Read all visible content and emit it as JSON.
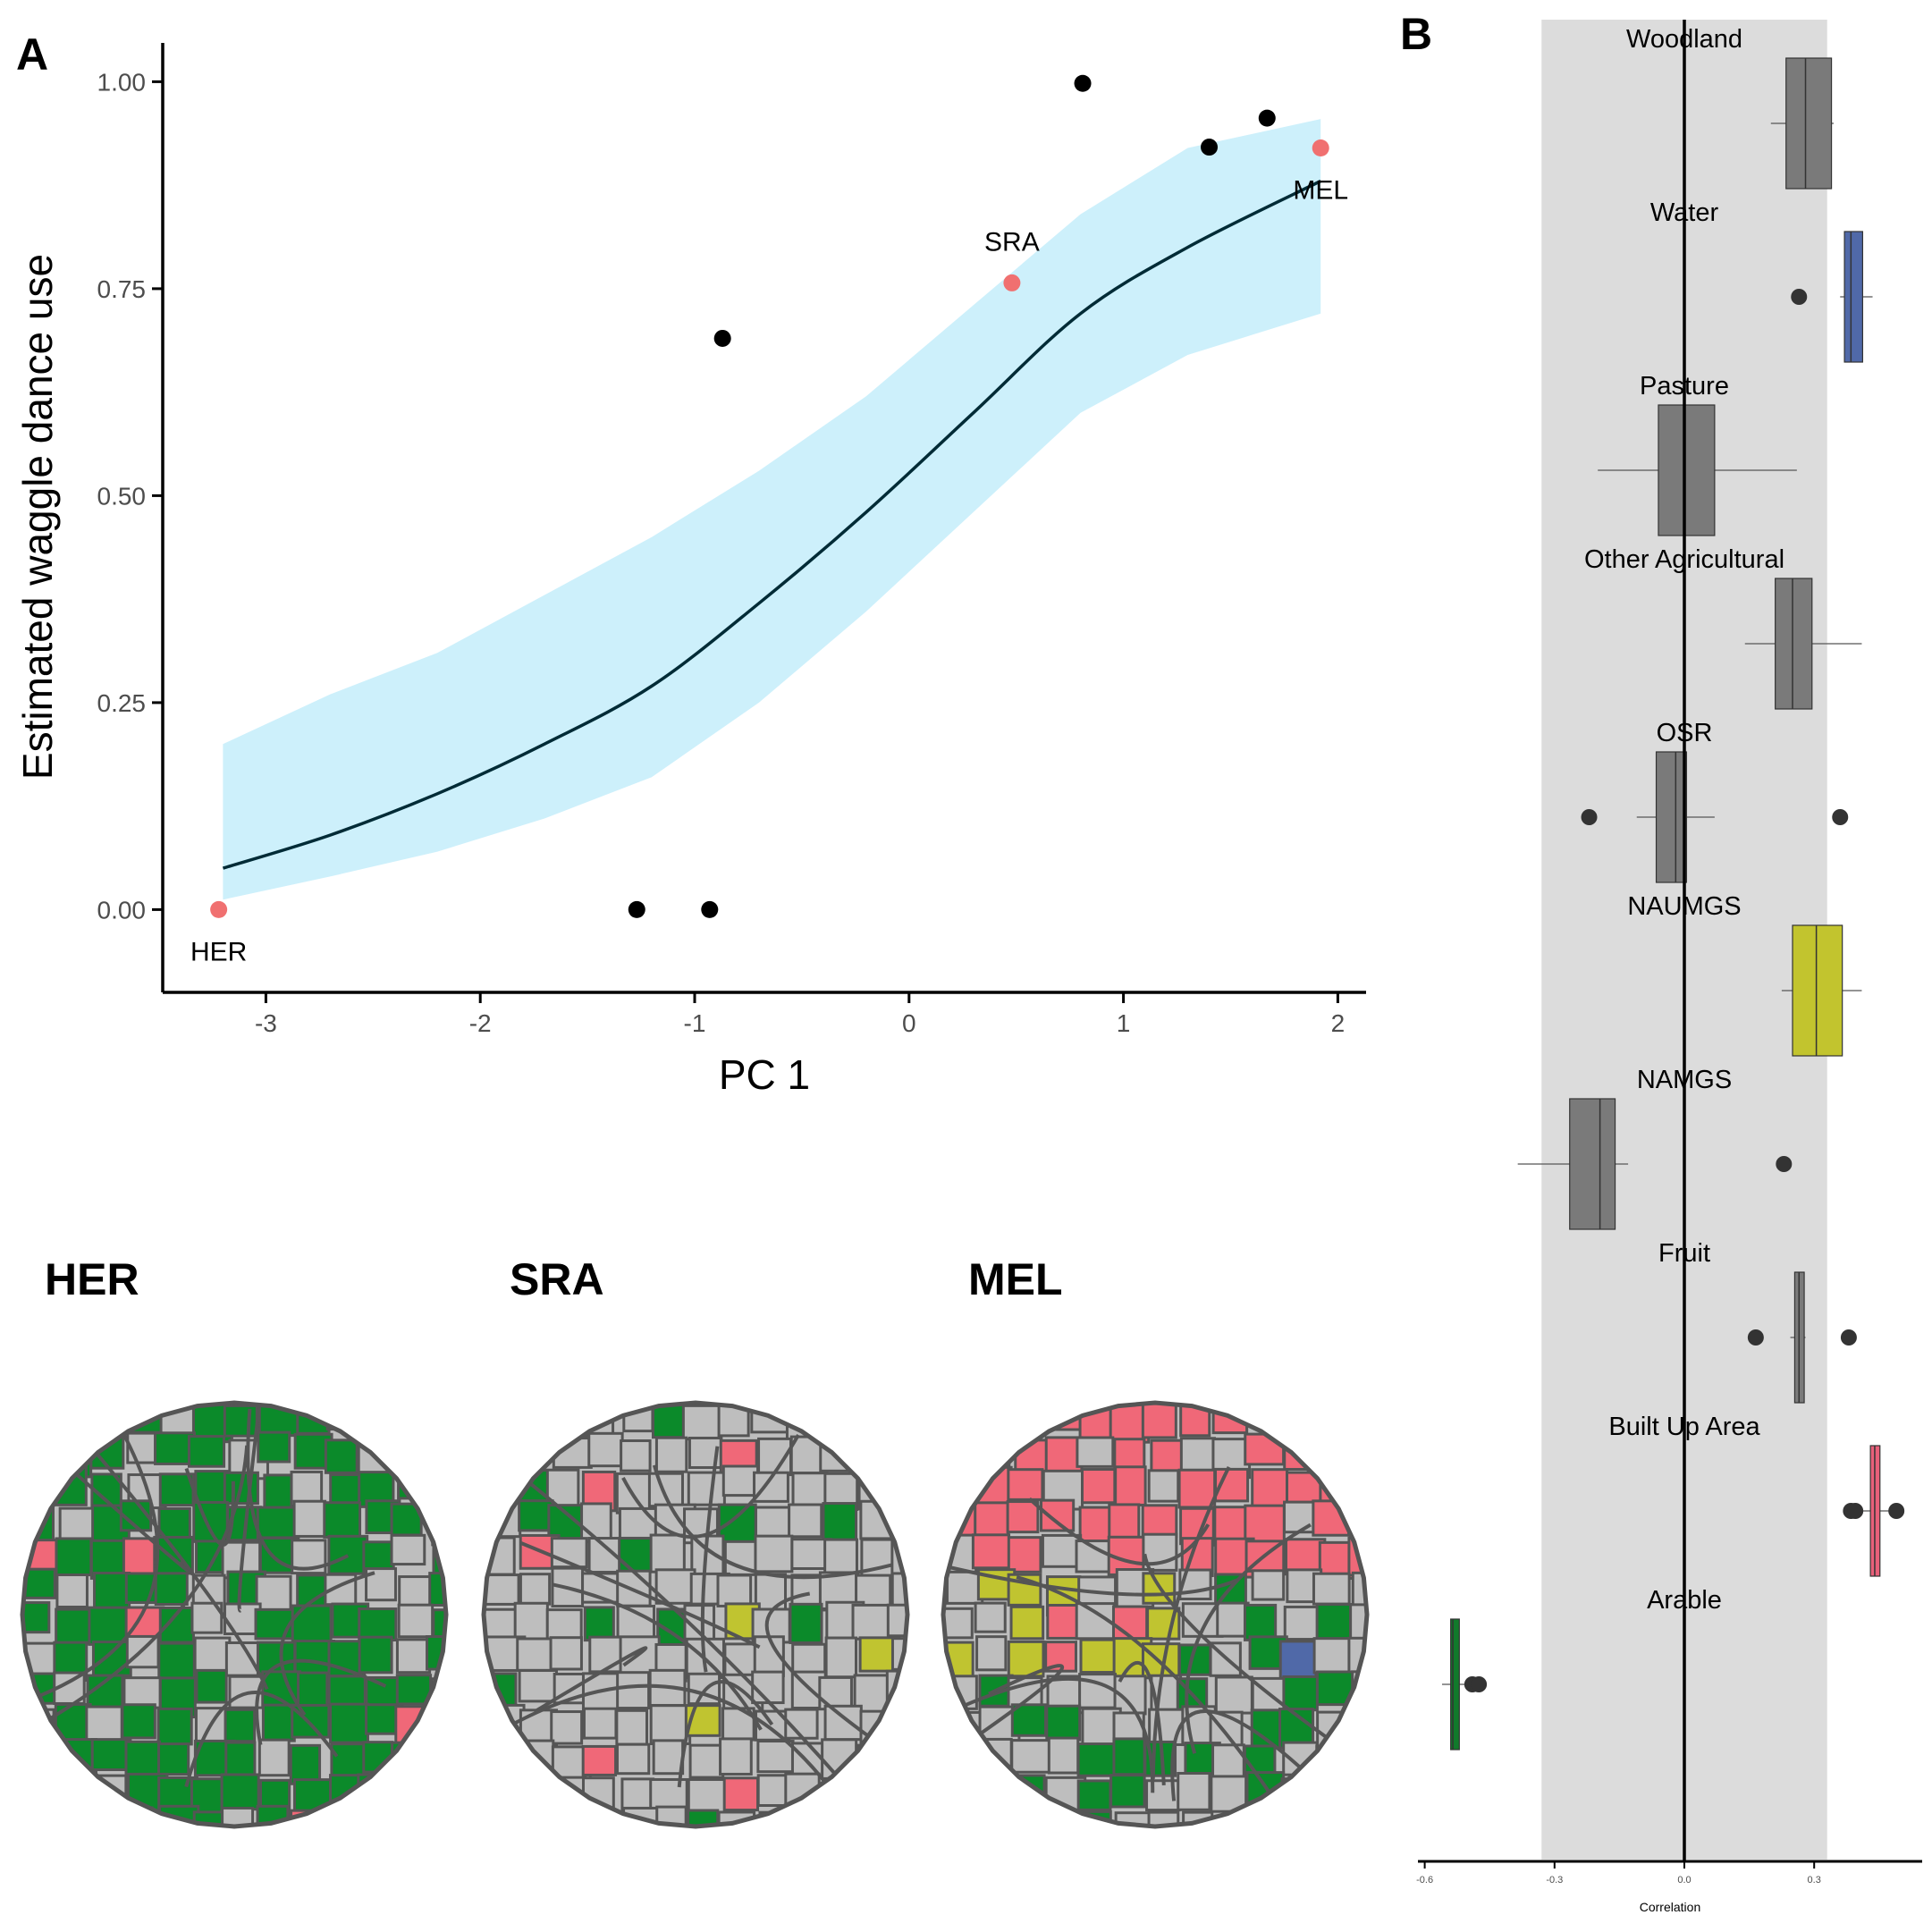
{
  "panels": {
    "a_label": "A",
    "b_label": "B"
  },
  "chart_data": [
    {
      "type": "scatter",
      "panel": "A",
      "xlabel": "PC 1",
      "ylabel": "Estimated waggle dance use",
      "xlim": [
        -3.5,
        2.2
      ],
      "ylim": [
        -0.1,
        1.05
      ],
      "xticks": [
        {
          "value": -3,
          "label": "-3"
        },
        {
          "value": -2,
          "label": "-2"
        },
        {
          "value": -1,
          "label": "-1"
        },
        {
          "value": 0,
          "label": "0"
        },
        {
          "value": 1,
          "label": "1"
        },
        {
          "value": 2,
          "label": "2"
        }
      ],
      "yticks": [
        {
          "value": 0,
          "label": "0.00"
        },
        {
          "value": 0.25,
          "label": "0.25"
        },
        {
          "value": 0.5,
          "label": "0.50"
        },
        {
          "value": 0.75,
          "label": "0.75"
        },
        {
          "value": 1,
          "label": "1.00"
        }
      ],
      "fit_curve": {
        "color": "#002b36",
        "ribbon_color": "#cdf0fb",
        "x": [
          -3.2,
          -2.7,
          -2.2,
          -1.7,
          -1.2,
          -0.7,
          -0.2,
          0.3,
          0.8,
          1.3,
          1.92
        ],
        "y": [
          0.05,
          0.09,
          0.14,
          0.2,
          0.27,
          0.37,
          0.48,
          0.6,
          0.72,
          0.8,
          0.88
        ],
        "lower": [
          0.012,
          0.04,
          0.07,
          0.11,
          0.16,
          0.25,
          0.36,
          0.48,
          0.6,
          0.67,
          0.72
        ],
        "upper": [
          0.2,
          0.26,
          0.31,
          0.38,
          0.45,
          0.53,
          0.62,
          0.73,
          0.84,
          0.92,
          0.955
        ]
      },
      "points": [
        {
          "x": -3.22,
          "y": 0.0,
          "label": "HER",
          "highlight": true
        },
        {
          "x": -1.27,
          "y": 0.0,
          "label": "",
          "highlight": false
        },
        {
          "x": -0.93,
          "y": 0.0,
          "label": "",
          "highlight": false
        },
        {
          "x": -0.87,
          "y": 0.69,
          "label": "",
          "highlight": false
        },
        {
          "x": 0.48,
          "y": 0.757,
          "label": "SRA",
          "highlight": true
        },
        {
          "x": 0.81,
          "y": 0.998,
          "label": "",
          "highlight": false
        },
        {
          "x": 1.4,
          "y": 0.921,
          "label": "",
          "highlight": false
        },
        {
          "x": 1.67,
          "y": 0.956,
          "label": "",
          "highlight": false
        },
        {
          "x": 1.92,
          "y": 0.92,
          "label": "MEL",
          "highlight": true
        }
      ],
      "point_colors": {
        "highlight": "#f07070",
        "normal": "#000000"
      }
    },
    {
      "type": "boxplot",
      "panel": "B",
      "xlabel": "Correlation",
      "xlim": [
        -0.62,
        0.54
      ],
      "xticks": [
        {
          "value": -0.6,
          "label": "-0.6"
        },
        {
          "value": -0.3,
          "label": "-0.3"
        },
        {
          "value": 0.0,
          "label": "0.0"
        },
        {
          "value": 0.3,
          "label": "0.3"
        }
      ],
      "shaded_band": [
        -0.33,
        0.33
      ],
      "reference_line": 0.0,
      "categories": [
        {
          "name": "Woodland",
          "color": "#7a7a7a",
          "q1": 0.235,
          "median": 0.28,
          "q3": 0.34,
          "whisker_low": 0.2,
          "whisker_high": 0.345,
          "outliers": []
        },
        {
          "name": "Water",
          "color": "#5069a8",
          "q1": 0.37,
          "median": 0.385,
          "q3": 0.412,
          "whisker_low": 0.36,
          "whisker_high": 0.435,
          "outliers": [
            0.265
          ]
        },
        {
          "name": "Pasture",
          "color": "#7a7a7a",
          "q1": -0.06,
          "median": 0.0,
          "q3": 0.07,
          "whisker_low": -0.2,
          "whisker_high": 0.26,
          "outliers": []
        },
        {
          "name": "Other Agricultural",
          "color": "#7a7a7a",
          "q1": 0.21,
          "median": 0.25,
          "q3": 0.295,
          "whisker_low": 0.14,
          "whisker_high": 0.41,
          "outliers": []
        },
        {
          "name": "OSR",
          "color": "#7a7a7a",
          "q1": -0.065,
          "median": -0.02,
          "q3": 0.005,
          "whisker_low": -0.11,
          "whisker_high": 0.07,
          "outliers": [
            -0.22,
            0.36
          ]
        },
        {
          "name": "NAUMGS",
          "color": "#c2c42e",
          "q1": 0.25,
          "median": 0.305,
          "q3": 0.365,
          "whisker_low": 0.225,
          "whisker_high": 0.41,
          "outliers": []
        },
        {
          "name": "NAMGS",
          "color": "#7a7a7a",
          "q1": -0.265,
          "median": -0.195,
          "q3": -0.16,
          "whisker_low": -0.385,
          "whisker_high": -0.13,
          "outliers": [
            0.23
          ]
        },
        {
          "name": "Fruit",
          "color": "#7a7a7a",
          "q1": 0.255,
          "median": 0.265,
          "q3": 0.277,
          "whisker_low": 0.245,
          "whisker_high": 0.28,
          "outliers": [
            0.165,
            0.38
          ]
        },
        {
          "name": "Built Up Area",
          "color": "#e8607a",
          "q1": 0.43,
          "median": 0.44,
          "q3": 0.452,
          "whisker_low": 0.4,
          "whisker_high": 0.49,
          "outliers": [
            0.385,
            0.395,
            0.49
          ]
        },
        {
          "name": "Arable",
          "color": "#117a2b",
          "q1": -0.54,
          "median": -0.535,
          "q3": -0.52,
          "whisker_low": -0.56,
          "whisker_high": -0.49,
          "outliers": [
            -0.49,
            -0.475
          ]
        }
      ]
    }
  ],
  "maps": [
    {
      "label": "HER",
      "dominant": "#0b8a2a",
      "accent": "#f06878"
    },
    {
      "label": "SRA",
      "dominant": "#bebebe",
      "accent": "#f06878"
    },
    {
      "label": "MEL",
      "dominant": "#f06878",
      "accent": "#c0c430"
    }
  ],
  "map_colors": {
    "grey": "#bebebe",
    "border": "#555555",
    "green": "#0b8a2a",
    "pink": "#f06878",
    "yellow": "#c0c430",
    "blue": "#5069a8"
  }
}
